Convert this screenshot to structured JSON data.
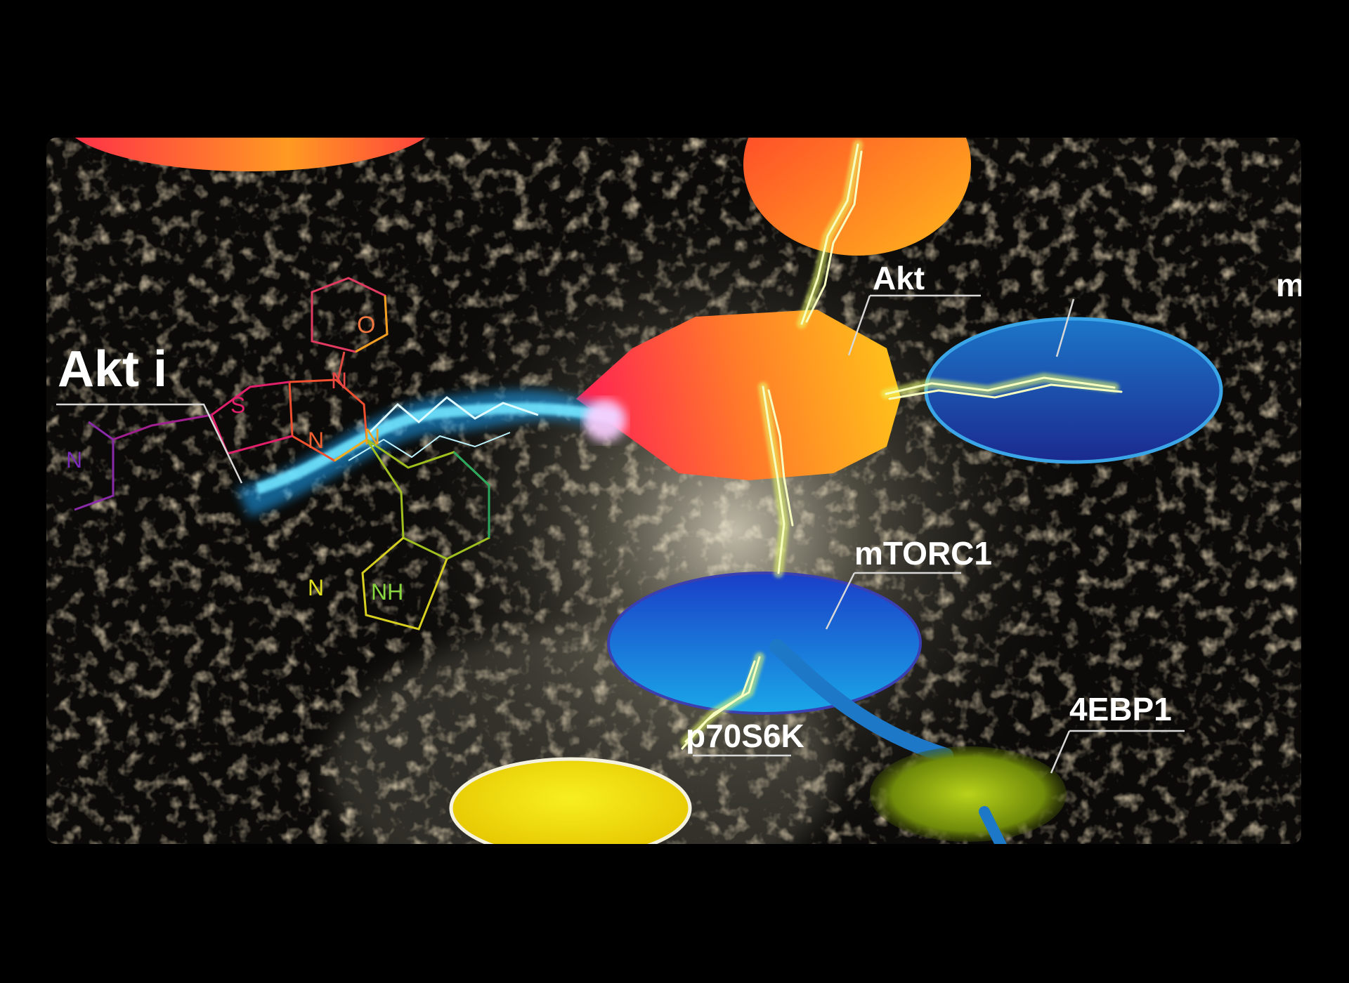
{
  "labels": {
    "akt_inhibitor": "Akt i",
    "akt": "Akt",
    "mtorc1": "mTORC1",
    "p70s6k": "p70S6K",
    "4ebp1": "4EBP1",
    "mtorc2_partial": "m"
  },
  "molecule_atoms": {
    "oxygen": "O",
    "morpholine_n": "N",
    "sulfur": "S",
    "pyrimidine_n_top": "N",
    "pyrimidine_n_bottom": "N",
    "piperazine_n": "N",
    "indazole_n": "N",
    "indazole_nh": "NH"
  },
  "colors": {
    "akt_red": "#ff1f55",
    "akt_orange": "#ffb019",
    "mtorc1_blue": "#1e63d8",
    "right_blue": "#2378c8",
    "p70s6k_yellow": "#f4e600",
    "ebp1_green": "#9bb80f",
    "lightning": "#eaff6a",
    "inhibitor_beam": "#1fc0ff"
  }
}
